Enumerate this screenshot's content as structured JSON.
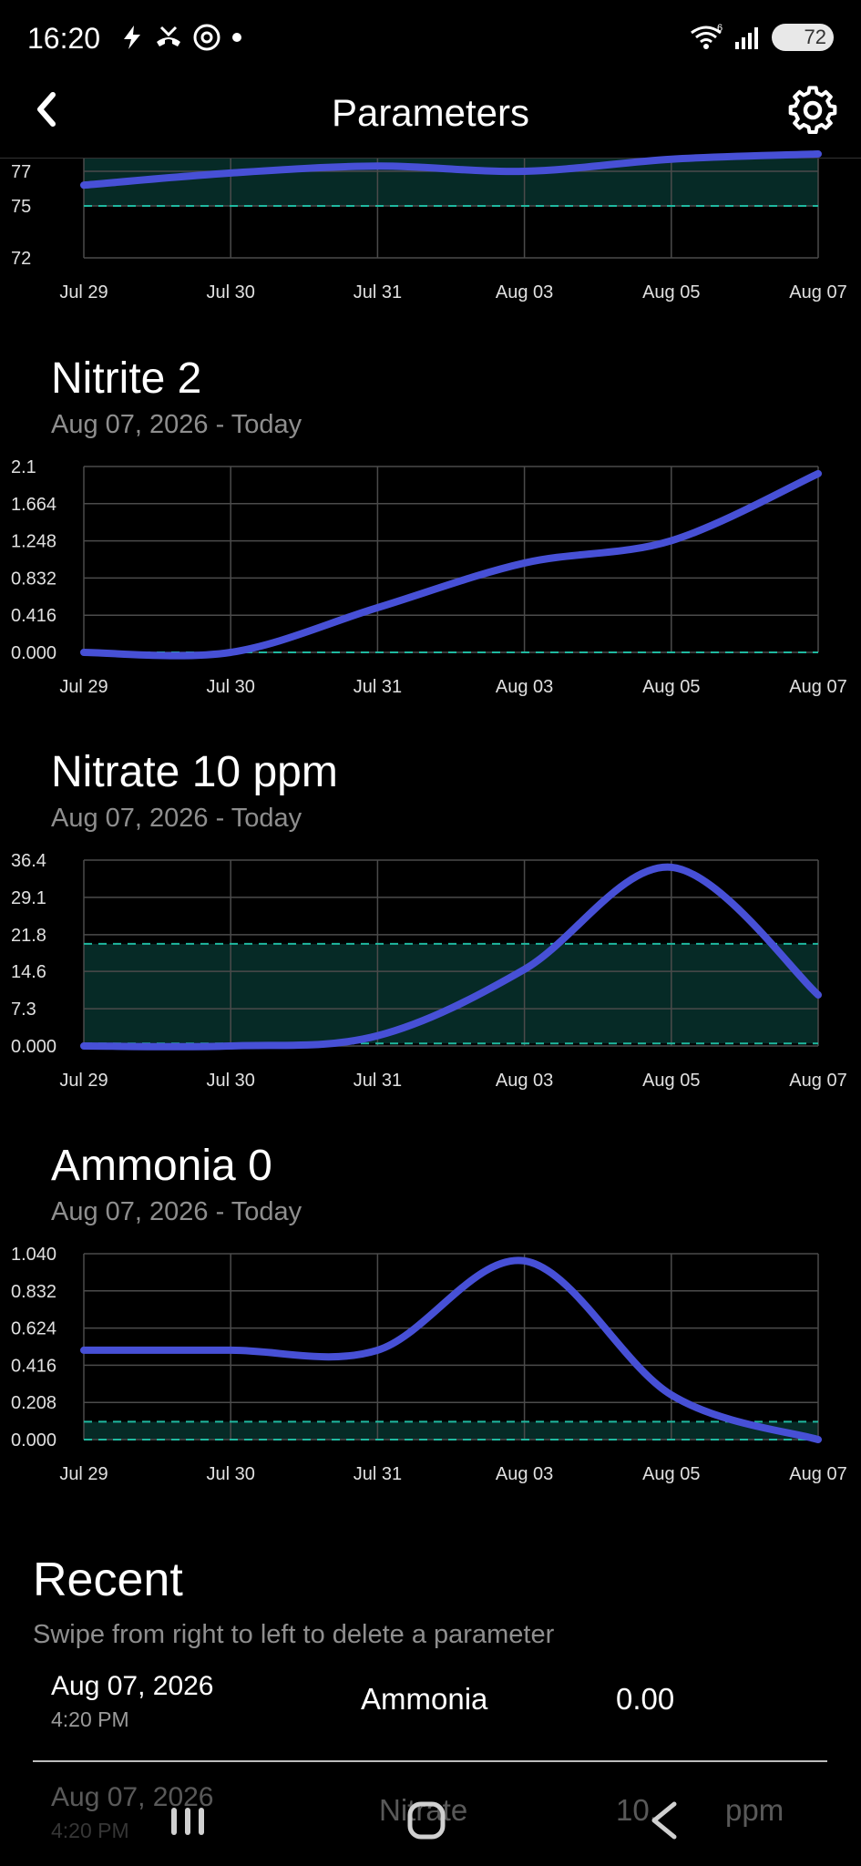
{
  "status_bar": {
    "time": "16:20",
    "battery": "72",
    "signal_label": "6"
  },
  "app_bar": {
    "title": "Parameters",
    "back_icon": "back-chevron-icon",
    "settings_icon": "gear-icon"
  },
  "colors": {
    "line": "#4750d6",
    "range_band": "#062a26",
    "range_line": "#1fb9a0",
    "grid": "#4b4b4b"
  },
  "charts": [
    {
      "title": "",
      "subtitle": "",
      "y_ticks": [
        "77",
        "75",
        "72"
      ]
    },
    {
      "title": "Nitrite 2",
      "subtitle": "Aug 07, 2026 - Today",
      "y_ticks": [
        "2.1",
        "1.664",
        "1.248",
        "0.832",
        "0.416",
        "0.000"
      ]
    },
    {
      "title": "Nitrate 10 ppm",
      "subtitle": "Aug 07, 2026 - Today",
      "y_ticks": [
        "36.4",
        "29.1",
        "21.8",
        "14.6",
        "7.3",
        "0.000"
      ]
    },
    {
      "title": "Ammonia 0",
      "subtitle": "Aug 07, 2026 - Today",
      "y_ticks": [
        "1.040",
        "0.832",
        "0.624",
        "0.416",
        "0.208",
        "0.000"
      ]
    }
  ],
  "chart_data": [
    {
      "type": "line",
      "title": "",
      "categories": [
        "Jul 29",
        "Jul 30",
        "Jul 31",
        "Aug 03",
        "Aug 05",
        "Aug 07"
      ],
      "ylim": [
        72,
        79
      ],
      "y_ticks": [
        72,
        75,
        77
      ],
      "values": [
        76.2,
        76.9,
        77.3,
        77.0,
        77.7,
        78.0
      ],
      "target_range": [
        75,
        79
      ]
    },
    {
      "type": "line",
      "title": "Nitrite 2",
      "categories": [
        "Jul 29",
        "Jul 30",
        "Jul 31",
        "Aug 03",
        "Aug 05",
        "Aug 07"
      ],
      "ylim": [
        0,
        2.08
      ],
      "y_ticks": [
        0,
        0.416,
        0.832,
        1.248,
        1.664,
        2.08
      ],
      "values": [
        0.0,
        0.0,
        0.5,
        1.0,
        1.25,
        2.0
      ],
      "target_range": [
        0,
        0
      ]
    },
    {
      "type": "line",
      "title": "Nitrate 10 ppm",
      "categories": [
        "Jul 29",
        "Jul 30",
        "Jul 31",
        "Aug 03",
        "Aug 05",
        "Aug 07"
      ],
      "ylim": [
        0,
        36.4
      ],
      "y_ticks": [
        0,
        7.3,
        14.6,
        21.8,
        29.1,
        36.4
      ],
      "values": [
        0.0,
        0.0,
        2.0,
        15.0,
        35.0,
        10.0
      ],
      "target_range": [
        0.5,
        20
      ]
    },
    {
      "type": "line",
      "title": "Ammonia 0",
      "categories": [
        "Jul 29",
        "Jul 30",
        "Jul 31",
        "Aug 03",
        "Aug 05",
        "Aug 07"
      ],
      "ylim": [
        0,
        1.04
      ],
      "y_ticks": [
        0,
        0.208,
        0.416,
        0.624,
        0.832,
        1.04
      ],
      "values": [
        0.5,
        0.5,
        0.5,
        1.0,
        0.25,
        0.0
      ],
      "target_range": [
        0,
        0.1
      ]
    }
  ],
  "recent": {
    "title": "Recent",
    "subtitle": "Swipe from right to left to delete a parameter",
    "items": [
      {
        "date": "Aug 07, 2026",
        "time": "4:20 PM",
        "name": "Ammonia",
        "value": "0.00",
        "unit": ""
      },
      {
        "date": "Aug 07, 2026",
        "time": "4:20 PM",
        "name": "Nitrate",
        "value": "10.",
        "unit": "ppm"
      }
    ]
  },
  "nav": {
    "recents_icon": "recents-icon",
    "home_icon": "home-icon",
    "back_icon": "back-triangle-icon"
  }
}
